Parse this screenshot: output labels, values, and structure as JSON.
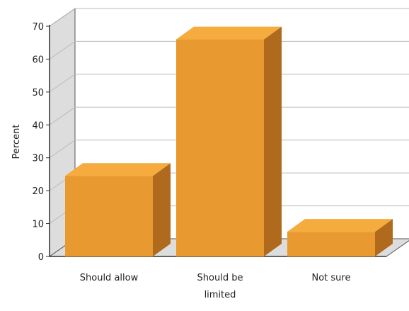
{
  "chart_data": {
    "type": "bar",
    "style": "3d",
    "categories": [
      [
        "Should allow"
      ],
      [
        "Should be",
        "limited"
      ],
      [
        "Not sure"
      ]
    ],
    "values": [
      24.5,
      66,
      7.5
    ],
    "ylabel": "Percent",
    "xlabel": "",
    "title": "",
    "ylim": [
      0,
      70
    ],
    "yticks": [
      0,
      10,
      20,
      30,
      40,
      50,
      60,
      70
    ],
    "grid": true,
    "legend": "none",
    "colors": {
      "bar_front": "#E8992F",
      "bar_top": "#F5AB3E",
      "bar_side": "#B06A1E",
      "back_wall": "#FFFFFF",
      "left_wall": "#DDDDDD",
      "floor": "#DDDDDD",
      "grid": "#BBBBBB"
    }
  }
}
